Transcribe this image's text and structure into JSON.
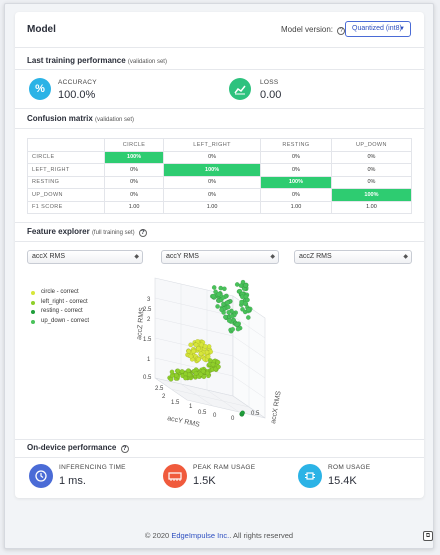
{
  "header": {
    "title": "Model",
    "model_version_label": "Model version:",
    "model_version_selected": "Quantized (int8)"
  },
  "training": {
    "title": "Last training performance",
    "subtitle": "(validation set)",
    "accuracy_label": "ACCURACY",
    "accuracy_value": "100.0%",
    "loss_label": "LOSS",
    "loss_value": "0.00",
    "colors": {
      "accuracy": "#2bb3e6",
      "loss": "#2ec27e"
    }
  },
  "confusion": {
    "title": "Confusion matrix",
    "subtitle": "(validation set)",
    "columns": [
      "CIRCLE",
      "LEFT_RIGHT",
      "RESTING",
      "UP_DOWN"
    ],
    "rows": [
      {
        "label": "CIRCLE",
        "cells": [
          "100%",
          "0%",
          "0%",
          "0%"
        ]
      },
      {
        "label": "LEFT_RIGHT",
        "cells": [
          "0%",
          "100%",
          "0%",
          "0%"
        ]
      },
      {
        "label": "RESTING",
        "cells": [
          "0%",
          "0%",
          "100%",
          "0%"
        ]
      },
      {
        "label": "UP_DOWN",
        "cells": [
          "0%",
          "0%",
          "0%",
          "100%"
        ]
      },
      {
        "label": "F1 SCORE",
        "cells": [
          "1.00",
          "1.00",
          "1.00",
          "1.00"
        ]
      }
    ],
    "highlight_color": "#2ecc71"
  },
  "explorer": {
    "title": "Feature explorer",
    "subtitle": "(full training set)",
    "axis_x_select": "accX RMS",
    "axis_y_select": "accY RMS",
    "axis_z_select": "accZ RMS",
    "legend": [
      {
        "label": "circle - correct",
        "color": "#d7e63a"
      },
      {
        "label": "left_right - correct",
        "color": "#8fcf2a"
      },
      {
        "label": "resting - correct",
        "color": "#1f9e3b"
      },
      {
        "label": "up_down - correct",
        "color": "#49c25a"
      }
    ],
    "plot": {
      "z_title": "accZ RMS",
      "y_title": "accY RMS",
      "x_title": "accX RMS",
      "z_ticks": [
        "3",
        "2.5",
        "2",
        "1.5",
        "1",
        "0.5"
      ],
      "y_ticks": [
        "2.5",
        "2",
        "1.5",
        "1",
        "0.5",
        "0"
      ],
      "x_ticks": [
        "0",
        "0.5"
      ]
    }
  },
  "ondevice": {
    "title": "On-device performance",
    "inferencing_label": "INFERENCING TIME",
    "inferencing_value": "1 ms.",
    "ram_label": "PEAK RAM USAGE",
    "ram_value": "1.5K",
    "rom_label": "ROM USAGE",
    "rom_value": "15.4K",
    "colors": {
      "inferencing": "#4a6bd6",
      "ram": "#f05a3c",
      "rom": "#2bb3e6"
    }
  },
  "footer": {
    "prefix": "© 2020",
    "company": "EdgeImpulse Inc.",
    "suffix": "All rights reserved"
  }
}
